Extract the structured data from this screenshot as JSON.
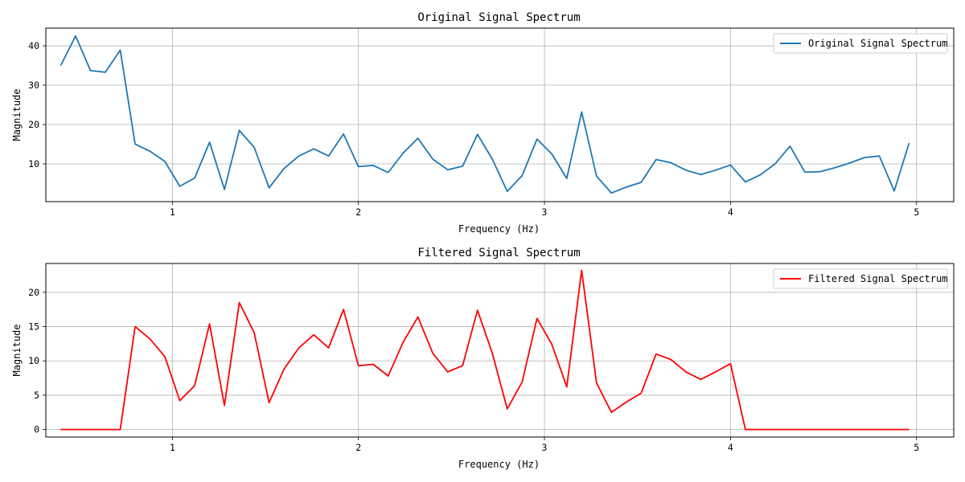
{
  "chart_data": [
    {
      "type": "line",
      "title": "Original Signal Spectrum",
      "xlabel": "Frequency (Hz)",
      "ylabel": "Magnitude",
      "xlim": [
        0.32,
        5.2
      ],
      "ylim": [
        0.4,
        44.5
      ],
      "xticks": [
        1,
        2,
        3,
        4,
        5
      ],
      "yticks": [
        10,
        20,
        30,
        40
      ],
      "grid": true,
      "legend_position": "top-right",
      "series": [
        {
          "name": "Original Signal Spectrum",
          "color": "#1f77b4",
          "x": [
            0.4,
            0.48,
            0.56,
            0.64,
            0.72,
            0.8,
            0.88,
            0.96,
            1.04,
            1.12,
            1.2,
            1.28,
            1.36,
            1.44,
            1.52,
            1.6,
            1.68,
            1.76,
            1.84,
            1.92,
            2.0,
            2.08,
            2.16,
            2.24,
            2.32,
            2.4,
            2.48,
            2.56,
            2.64,
            2.72,
            2.8,
            2.88,
            2.96,
            3.04,
            3.12,
            3.2,
            3.28,
            3.36,
            3.44,
            3.52,
            3.6,
            3.68,
            3.76,
            3.84,
            3.92,
            4.0,
            4.08,
            4.16,
            4.24,
            4.32,
            4.4,
            4.48,
            4.56,
            4.64,
            4.72,
            4.8,
            4.88,
            4.96
          ],
          "y": [
            35.0,
            42.5,
            33.7,
            33.3,
            38.9,
            15.0,
            13.2,
            10.6,
            4.3,
            6.4,
            15.5,
            3.5,
            18.5,
            14.2,
            3.9,
            8.8,
            12.0,
            13.8,
            12.0,
            17.6,
            9.3,
            9.6,
            7.8,
            12.7,
            16.5,
            11.2,
            8.5,
            9.4,
            17.5,
            11.2,
            3.0,
            7.0,
            16.3,
            12.5,
            6.3,
            23.2,
            6.9,
            2.6,
            4.1,
            5.3,
            11.1,
            10.3,
            8.4,
            7.3,
            8.4,
            9.7,
            5.4,
            7.2,
            10.0,
            14.5,
            7.9,
            8.0,
            9.0,
            10.2,
            11.6,
            12.0,
            3.1,
            15.3
          ]
        }
      ]
    },
    {
      "type": "line",
      "title": "Filtered Signal Spectrum",
      "xlabel": "Frequency (Hz)",
      "ylabel": "Magnitude",
      "xlim": [
        0.32,
        5.2
      ],
      "ylim": [
        -1.1,
        24.2
      ],
      "xticks": [
        1,
        2,
        3,
        4,
        5
      ],
      "yticks": [
        0,
        5,
        10,
        15,
        20
      ],
      "grid": true,
      "legend_position": "top-right",
      "series": [
        {
          "name": "Filtered Signal Spectrum",
          "color": "#ff0000",
          "x": [
            0.4,
            0.48,
            0.56,
            0.64,
            0.72,
            0.8,
            0.88,
            0.96,
            1.04,
            1.12,
            1.2,
            1.28,
            1.36,
            1.44,
            1.52,
            1.6,
            1.68,
            1.76,
            1.84,
            1.92,
            2.0,
            2.08,
            2.16,
            2.24,
            2.32,
            2.4,
            2.48,
            2.56,
            2.64,
            2.72,
            2.8,
            2.88,
            2.96,
            3.04,
            3.12,
            3.2,
            3.28,
            3.36,
            3.44,
            3.52,
            3.6,
            3.68,
            3.76,
            3.84,
            3.92,
            4.0,
            4.08,
            4.16,
            4.24,
            4.32,
            4.4,
            4.48,
            4.56,
            4.64,
            4.72,
            4.8,
            4.88,
            4.96
          ],
          "y": [
            0,
            0,
            0,
            0,
            0,
            15.0,
            13.2,
            10.6,
            4.2,
            6.4,
            15.4,
            3.5,
            18.5,
            14.1,
            3.9,
            8.8,
            11.9,
            13.8,
            11.9,
            17.5,
            9.3,
            9.5,
            7.8,
            12.7,
            16.4,
            11.1,
            8.4,
            9.3,
            17.4,
            11.1,
            3.0,
            6.9,
            16.2,
            12.4,
            6.2,
            23.2,
            6.8,
            2.5,
            4.0,
            5.3,
            11.0,
            10.2,
            8.4,
            7.3,
            8.4,
            9.6,
            0,
            0,
            0,
            0,
            0,
            0,
            0,
            0,
            0,
            0,
            0,
            0
          ]
        }
      ]
    }
  ]
}
